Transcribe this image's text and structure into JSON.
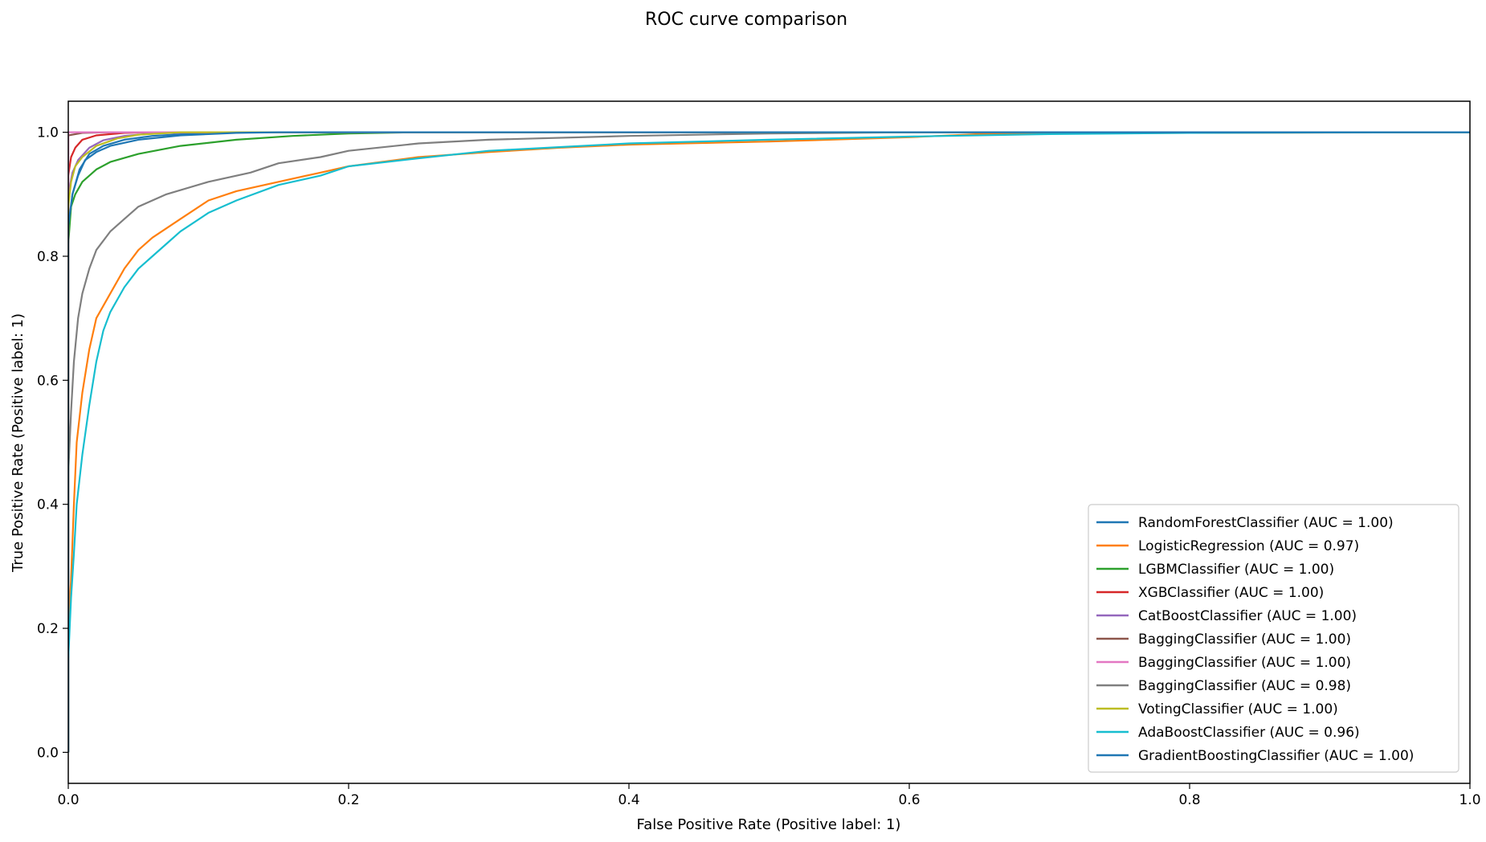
{
  "chart_data": {
    "type": "line",
    "title": "ROC curve comparison",
    "xlabel": "False Positive Rate (Positive label: 1)",
    "ylabel": "True Positive Rate (Positive label: 1)",
    "xlim": [
      0.0,
      1.0
    ],
    "ylim": [
      -0.05,
      1.05
    ],
    "xticks": [
      "0.0",
      "0.2",
      "0.4",
      "0.6",
      "0.8",
      "1.0"
    ],
    "yticks": [
      "0.0",
      "0.2",
      "0.4",
      "0.6",
      "0.8",
      "1.0"
    ],
    "grid": false,
    "legend_position": "lower-right",
    "series": [
      {
        "name": "RandomForestClassifier (AUC = 1.00)",
        "color": "#1f77b4",
        "points": [
          [
            0,
            0
          ],
          [
            0,
            0.84
          ],
          [
            0.003,
            0.9
          ],
          [
            0.008,
            0.94
          ],
          [
            0.015,
            0.965
          ],
          [
            0.025,
            0.978
          ],
          [
            0.04,
            0.988
          ],
          [
            0.06,
            0.994
          ],
          [
            0.09,
            0.998
          ],
          [
            0.13,
            1.0
          ],
          [
            1,
            1.0
          ]
        ]
      },
      {
        "name": "LogisticRegression (AUC = 0.97)",
        "color": "#ff7f0e",
        "points": [
          [
            0,
            0
          ],
          [
            0,
            0.2
          ],
          [
            0.002,
            0.28
          ],
          [
            0.004,
            0.4
          ],
          [
            0.006,
            0.5
          ],
          [
            0.01,
            0.58
          ],
          [
            0.015,
            0.65
          ],
          [
            0.02,
            0.7
          ],
          [
            0.03,
            0.74
          ],
          [
            0.04,
            0.78
          ],
          [
            0.05,
            0.81
          ],
          [
            0.06,
            0.83
          ],
          [
            0.08,
            0.86
          ],
          [
            0.1,
            0.89
          ],
          [
            0.12,
            0.905
          ],
          [
            0.15,
            0.92
          ],
          [
            0.18,
            0.935
          ],
          [
            0.2,
            0.945
          ],
          [
            0.25,
            0.96
          ],
          [
            0.3,
            0.968
          ],
          [
            0.35,
            0.975
          ],
          [
            0.4,
            0.98
          ],
          [
            0.5,
            0.985
          ],
          [
            0.6,
            0.992
          ],
          [
            0.66,
            0.998
          ],
          [
            0.8,
            0.999
          ],
          [
            1,
            1.0
          ]
        ]
      },
      {
        "name": "LGBMClassifier (AUC = 1.00)",
        "color": "#2ca02c",
        "points": [
          [
            0,
            0
          ],
          [
            0,
            0.82
          ],
          [
            0.002,
            0.88
          ],
          [
            0.005,
            0.9
          ],
          [
            0.01,
            0.92
          ],
          [
            0.02,
            0.94
          ],
          [
            0.03,
            0.952
          ],
          [
            0.05,
            0.965
          ],
          [
            0.08,
            0.978
          ],
          [
            0.12,
            0.988
          ],
          [
            0.16,
            0.994
          ],
          [
            0.2,
            0.998
          ],
          [
            0.25,
            1.0
          ],
          [
            1,
            1.0
          ]
        ]
      },
      {
        "name": "XGBClassifier (AUC = 1.00)",
        "color": "#d62728",
        "points": [
          [
            0,
            0
          ],
          [
            0,
            0.93
          ],
          [
            0.002,
            0.96
          ],
          [
            0.005,
            0.975
          ],
          [
            0.01,
            0.988
          ],
          [
            0.02,
            0.995
          ],
          [
            0.04,
            0.999
          ],
          [
            0.06,
            1.0
          ],
          [
            1,
            1.0
          ]
        ]
      },
      {
        "name": "CatBoostClassifier (AUC = 1.00)",
        "color": "#9467bd",
        "points": [
          [
            0,
            0
          ],
          [
            0,
            0.9
          ],
          [
            0.003,
            0.935
          ],
          [
            0.007,
            0.955
          ],
          [
            0.015,
            0.975
          ],
          [
            0.025,
            0.987
          ],
          [
            0.04,
            0.994
          ],
          [
            0.06,
            0.998
          ],
          [
            0.09,
            1.0
          ],
          [
            1,
            1.0
          ]
        ]
      },
      {
        "name": "BaggingClassifier (AUC = 1.00)",
        "color": "#8c564b",
        "points": [
          [
            0,
            0
          ],
          [
            0,
            0.995
          ],
          [
            0.01,
            0.999
          ],
          [
            0.03,
            1.0
          ],
          [
            1,
            1.0
          ]
        ]
      },
      {
        "name": "BaggingClassifier (AUC = 1.00)",
        "color": "#e377c2",
        "points": [
          [
            0,
            0
          ],
          [
            0,
            1.0
          ],
          [
            1,
            1.0
          ]
        ]
      },
      {
        "name": "BaggingClassifier (AUC = 0.98)",
        "color": "#7f7f7f",
        "points": [
          [
            0,
            0
          ],
          [
            0,
            0.45
          ],
          [
            0.002,
            0.55
          ],
          [
            0.004,
            0.63
          ],
          [
            0.007,
            0.7
          ],
          [
            0.01,
            0.74
          ],
          [
            0.015,
            0.78
          ],
          [
            0.02,
            0.81
          ],
          [
            0.03,
            0.84
          ],
          [
            0.04,
            0.86
          ],
          [
            0.05,
            0.88
          ],
          [
            0.07,
            0.9
          ],
          [
            0.1,
            0.92
          ],
          [
            0.13,
            0.935
          ],
          [
            0.15,
            0.95
          ],
          [
            0.18,
            0.96
          ],
          [
            0.2,
            0.97
          ],
          [
            0.25,
            0.982
          ],
          [
            0.3,
            0.988
          ],
          [
            0.4,
            0.994
          ],
          [
            0.5,
            0.998
          ],
          [
            0.6,
            1.0
          ],
          [
            1,
            1.0
          ]
        ]
      },
      {
        "name": "VotingClassifier (AUC = 1.00)",
        "color": "#bcbd22",
        "points": [
          [
            0,
            0
          ],
          [
            0,
            0.88
          ],
          [
            0.002,
            0.92
          ],
          [
            0.005,
            0.945
          ],
          [
            0.01,
            0.96
          ],
          [
            0.02,
            0.978
          ],
          [
            0.035,
            0.99
          ],
          [
            0.05,
            0.996
          ],
          [
            0.08,
            1.0
          ],
          [
            1,
            1.0
          ]
        ]
      },
      {
        "name": "AdaBoostClassifier (AUC = 0.96)",
        "color": "#17becf",
        "points": [
          [
            0,
            0
          ],
          [
            0,
            0.15
          ],
          [
            0.002,
            0.25
          ],
          [
            0.004,
            0.32
          ],
          [
            0.006,
            0.4
          ],
          [
            0.01,
            0.48
          ],
          [
            0.015,
            0.56
          ],
          [
            0.02,
            0.63
          ],
          [
            0.025,
            0.68
          ],
          [
            0.03,
            0.71
          ],
          [
            0.04,
            0.75
          ],
          [
            0.05,
            0.78
          ],
          [
            0.06,
            0.8
          ],
          [
            0.07,
            0.82
          ],
          [
            0.08,
            0.84
          ],
          [
            0.1,
            0.87
          ],
          [
            0.12,
            0.89
          ],
          [
            0.15,
            0.915
          ],
          [
            0.18,
            0.93
          ],
          [
            0.2,
            0.945
          ],
          [
            0.25,
            0.958
          ],
          [
            0.3,
            0.97
          ],
          [
            0.35,
            0.976
          ],
          [
            0.4,
            0.982
          ],
          [
            0.5,
            0.988
          ],
          [
            0.6,
            0.993
          ],
          [
            0.7,
            0.997
          ],
          [
            0.8,
            0.999
          ],
          [
            0.95,
            1.0
          ],
          [
            1,
            1.0
          ]
        ]
      },
      {
        "name": "GradientBoostingClassifier (AUC = 1.00)",
        "color": "#1f77b4",
        "points": [
          [
            0,
            0
          ],
          [
            0,
            0.85
          ],
          [
            0.003,
            0.9
          ],
          [
            0.007,
            0.93
          ],
          [
            0.012,
            0.955
          ],
          [
            0.02,
            0.968
          ],
          [
            0.03,
            0.978
          ],
          [
            0.05,
            0.988
          ],
          [
            0.08,
            0.995
          ],
          [
            0.12,
            0.999
          ],
          [
            0.15,
            1.0
          ],
          [
            1,
            1.0
          ]
        ]
      }
    ]
  }
}
